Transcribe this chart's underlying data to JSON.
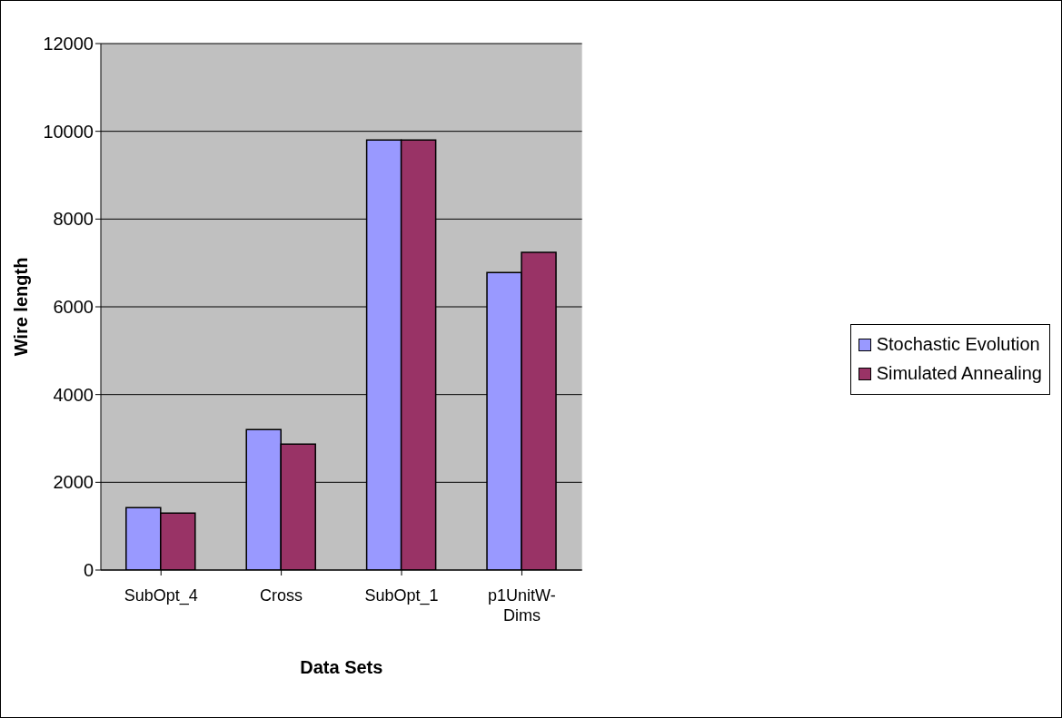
{
  "chart_data": {
    "type": "bar",
    "xlabel": "Data Sets",
    "ylabel": "Wire length",
    "categories": [
      "SubOpt_4",
      "Cross",
      "SubOpt_1",
      "p1UnitW-Dims"
    ],
    "series": [
      {
        "name": "Stochastic Evolution",
        "color": "#9999ff",
        "values": [
          1420,
          3200,
          9800,
          6780
        ]
      },
      {
        "name": "Simulated Annealing",
        "color": "#993366",
        "values": [
          1300,
          2870,
          9800,
          7240
        ]
      }
    ],
    "ylim": [
      0,
      12000
    ],
    "yticks": [
      0,
      2000,
      4000,
      6000,
      8000,
      10000,
      12000
    ],
    "grid": "y",
    "legend": "right"
  }
}
